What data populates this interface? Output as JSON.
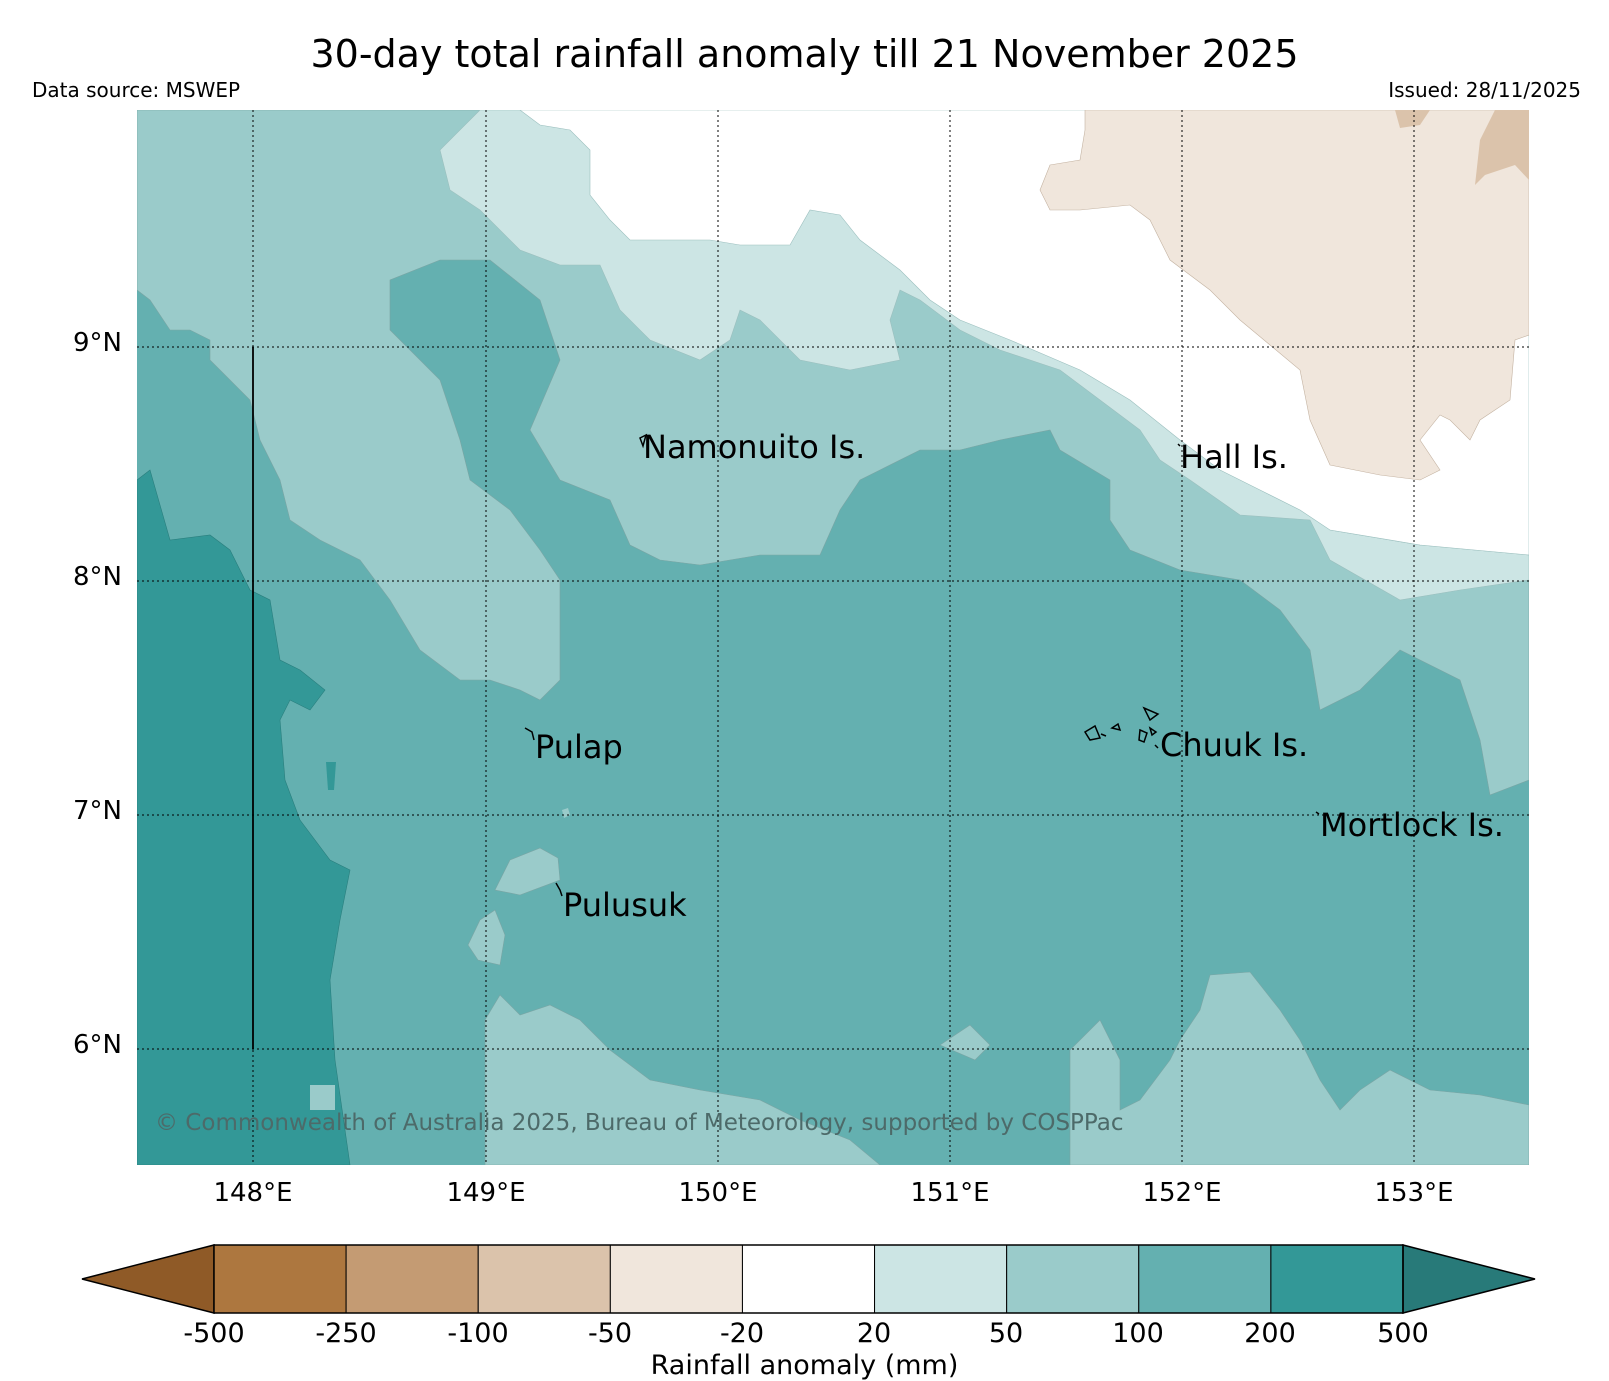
{
  "header": {
    "title": "30-day total rainfall anomaly till 21 November 2025",
    "source": "Data source: MSWEP",
    "issued": "Issued: 28/11/2025"
  },
  "map": {
    "lat_ticks": [
      "9°N",
      "8°N",
      "7°N",
      "6°N"
    ],
    "lon_ticks": [
      "148°E",
      "149°E",
      "150°E",
      "151°E",
      "152°E",
      "153°E"
    ],
    "extent": {
      "lon": [
        147.5,
        153.5
      ],
      "lat": [
        5.5,
        10.0
      ]
    },
    "places": [
      {
        "name": "Namonuito Is.",
        "lon": 149.67,
        "lat": 8.62
      },
      {
        "name": "Hall Is.",
        "lon": 151.98,
        "lat": 8.58
      },
      {
        "name": "Pulap",
        "lon": 149.22,
        "lat": 7.35
      },
      {
        "name": "Chuuk Is.",
        "lon": 151.85,
        "lat": 7.35
      },
      {
        "name": "Mortlock Is.",
        "lon": 152.6,
        "lat": 7.0
      },
      {
        "name": "Pulusuk",
        "lon": 149.32,
        "lat": 6.7
      }
    ],
    "copyright": "© Commonwealth of Australia 2025, Bureau of Meteorology, supported by COSPPac"
  },
  "colorbar": {
    "title": "Rainfall anomaly (mm)",
    "labels": [
      "-500",
      "-250",
      "-100",
      "-50",
      "-20",
      "20",
      "50",
      "100",
      "200",
      "500"
    ],
    "colors": [
      "#8f5a27",
      "#ad773f",
      "#c49b73",
      "#dbc3ab",
      "#f0e6dc",
      "#ffffff",
      "#cce5e4",
      "#9acbca",
      "#64b0b0",
      "#339897",
      "#287a79"
    ]
  }
}
